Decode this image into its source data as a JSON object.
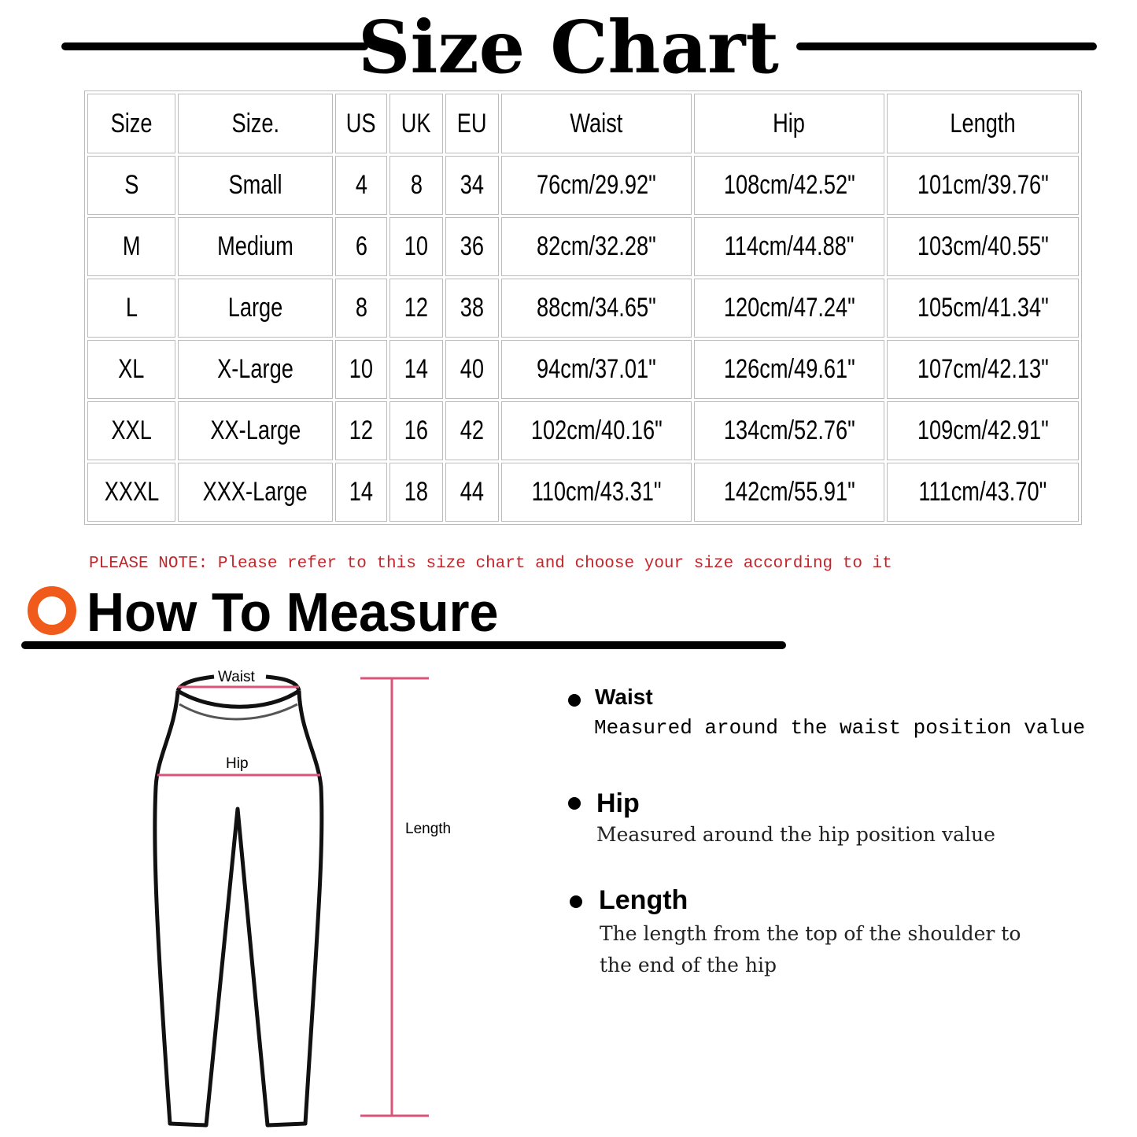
{
  "title": "Size Chart",
  "table": {
    "headers": [
      "Size",
      "Size.",
      "US",
      "UK",
      "EU",
      "Waist",
      "Hip",
      "Length"
    ],
    "rows": [
      [
        "S",
        "Small",
        "4",
        "8",
        "34",
        "76cm/29.92\"",
        "108cm/42.52\"",
        "101cm/39.76\""
      ],
      [
        "M",
        "Medium",
        "6",
        "10",
        "36",
        "82cm/32.28\"",
        "114cm/44.88\"",
        "103cm/40.55\""
      ],
      [
        "L",
        "Large",
        "8",
        "12",
        "38",
        "88cm/34.65\"",
        "120cm/47.24\"",
        "105cm/41.34\""
      ],
      [
        "XL",
        "X-Large",
        "10",
        "14",
        "40",
        "94cm/37.01\"",
        "126cm/49.61\"",
        "107cm/42.13\""
      ],
      [
        "XXL",
        "XX-Large",
        "12",
        "16",
        "42",
        "102cm/40.16\"",
        "134cm/52.76\"",
        "109cm/42.91\""
      ],
      [
        "XXXL",
        "XXX-Large",
        "14",
        "18",
        "44",
        "110cm/43.31\"",
        "142cm/55.91\"",
        "111cm/43.70\""
      ]
    ]
  },
  "note": "PLEASE NOTE: Please refer to this size chart and choose your size according to it",
  "how_to": {
    "title": "How To Measure",
    "accent_color": "#f05a1a",
    "diagram": {
      "waist": "Waist",
      "hip": "Hip",
      "length": "Length",
      "line_color": "#d9547a"
    },
    "items": [
      {
        "label": "Waist",
        "desc": "Measured around the waist position value"
      },
      {
        "label": "Hip",
        "desc": "Measured around the  hip position value"
      },
      {
        "label": "Length",
        "desc": "The length from the top of the shoulder to",
        "desc2": "the end of the hip"
      }
    ]
  }
}
